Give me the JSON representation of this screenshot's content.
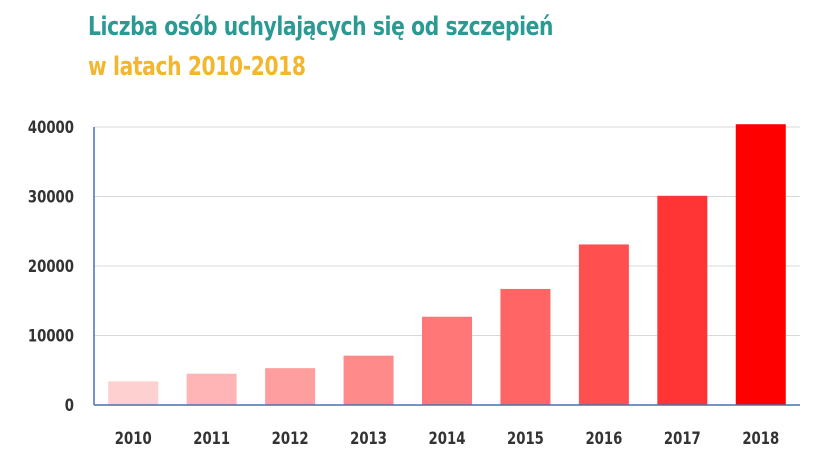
{
  "chart_data": {
    "type": "bar",
    "title": "Liczba osób uchylających się od szczepień",
    "subtitle": "w latach 2010-2018",
    "categories": [
      "2010",
      "2011",
      "2012",
      "2013",
      "2014",
      "2015",
      "2016",
      "2017",
      "2018"
    ],
    "values": [
      3400,
      4500,
      5300,
      7100,
      12700,
      16700,
      23100,
      30100,
      40400
    ],
    "bar_colors": [
      "#ffd0d0",
      "#ffb5b5",
      "#ff9e9e",
      "#ff8a8a",
      "#ff7777",
      "#ff6565",
      "#ff4f4f",
      "#ff3535",
      "#ff0000"
    ],
    "ylim": [
      0,
      40000
    ],
    "yticks": [
      0,
      10000,
      20000,
      30000,
      40000
    ],
    "xlabel": "",
    "ylabel": "",
    "grid": true
  },
  "colors": {
    "title": "#2a9a93",
    "subtitle": "#f2b72e",
    "axis": "#4a6fb5",
    "grid": "#d9d9d9"
  }
}
